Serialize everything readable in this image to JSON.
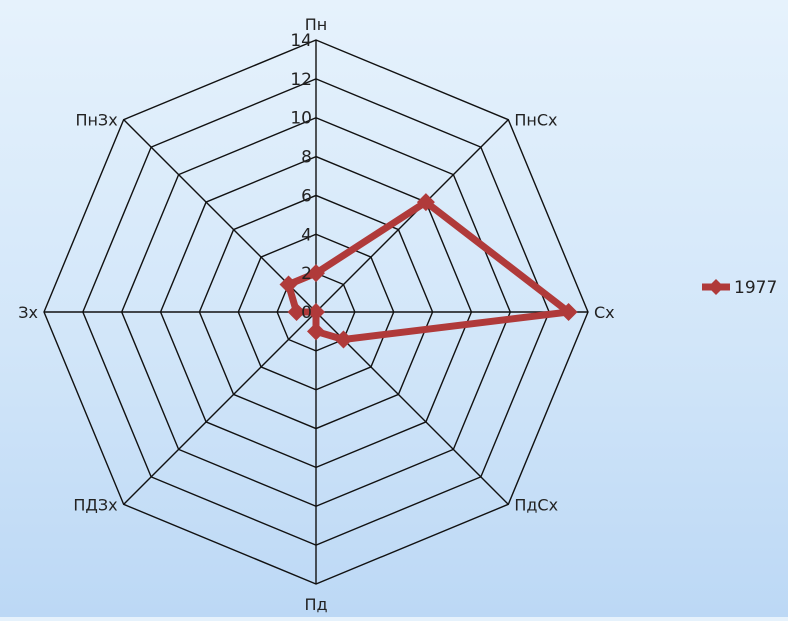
{
  "chart_data": {
    "type": "radar",
    "categories": [
      "Пн",
      "ПнСх",
      "Сх",
      "ПдСх",
      "Пд",
      "ПДЗх",
      "Зх",
      "ПнЗх"
    ],
    "series": [
      {
        "name": "1977",
        "values": [
          2,
          8,
          13,
          2,
          1,
          0,
          1,
          2
        ],
        "color": "#b03a3a"
      }
    ],
    "r_ticks": [
      0,
      2,
      4,
      6,
      8,
      10,
      12,
      14
    ],
    "rlim": [
      0,
      14
    ],
    "grid": true,
    "legend_position": "right"
  }
}
